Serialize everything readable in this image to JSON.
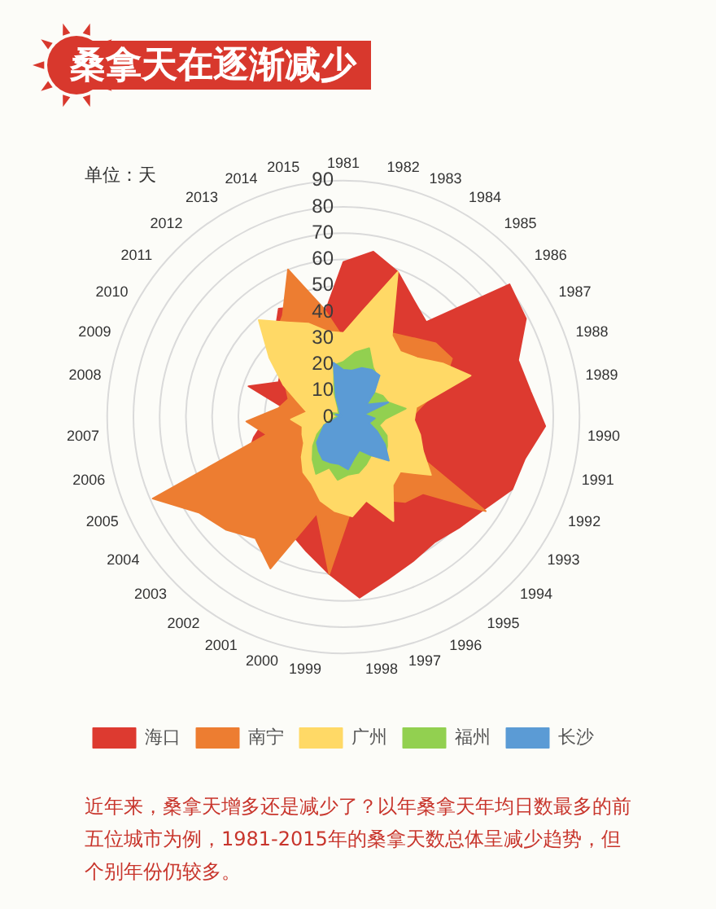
{
  "chart_data": {
    "type": "radar",
    "title": "桑拿天在逐渐减少",
    "ylabel": "单位：天",
    "categories": [
      "1981",
      "1982",
      "1983",
      "1984",
      "1985",
      "1986",
      "1987",
      "1988",
      "1989",
      "1990",
      "1991",
      "1992",
      "1993",
      "1994",
      "1995",
      "1996",
      "1997",
      "1998",
      "1999",
      "2000",
      "2001",
      "2002",
      "2003",
      "2004",
      "2005",
      "2006",
      "2007",
      "2008",
      "2009",
      "2010",
      "2011",
      "2012",
      "2013",
      "2014",
      "2015"
    ],
    "series": [
      {
        "name": "海口",
        "color": "#dd3a30",
        "values": [
          59,
          64,
          59,
          52,
          48,
          81,
          79,
          70,
          72,
          77,
          71,
          70,
          64,
          61,
          59,
          61,
          64,
          69,
          60,
          53,
          48,
          45,
          45,
          42,
          40,
          35,
          30,
          22,
          38,
          28,
          30,
          40,
          48,
          45,
          40
        ]
      },
      {
        "name": "南宁",
        "color": "#ed7d31",
        "values": [
          30,
          30,
          35,
          37,
          40,
          45,
          47,
          40,
          30,
          25,
          25,
          25,
          65,
          42,
          40,
          35,
          30,
          35,
          60,
          38,
          64,
          57,
          62,
          66,
          79,
          30,
          37,
          25,
          22,
          25,
          30,
          40,
          45,
          60,
          42
        ]
      },
      {
        "name": "广州",
        "color": "#ffd966",
        "values": [
          32,
          41,
          59,
          36,
          33,
          36,
          43,
          51,
          28,
          27,
          30,
          33,
          40,
          30,
          32,
          44,
          33,
          38,
          36,
          33,
          28,
          26,
          22,
          18,
          17,
          16,
          20,
          14,
          18,
          26,
          36,
          49,
          42,
          38,
          33
        ]
      },
      {
        "name": "福州",
        "color": "#92d050",
        "values": [
          21,
          25,
          28,
          22,
          20,
          15,
          17,
          18,
          24,
          16,
          14,
          18,
          20,
          22,
          18,
          20,
          22,
          22,
          24,
          20,
          24,
          20,
          16,
          12,
          8,
          5,
          3,
          2,
          5,
          3,
          2,
          3,
          4,
          10,
          20
        ]
      },
      {
        "name": "长沙",
        "color": "#5b9bd5",
        "values": [
          18,
          18,
          20,
          21,
          21,
          15,
          10,
          18,
          8,
          12,
          10,
          14,
          19,
          24,
          18,
          14,
          16,
          20,
          18,
          18,
          18,
          16,
          14,
          10,
          8,
          3,
          2,
          1,
          3,
          2,
          1,
          2,
          3,
          8,
          21
        ]
      }
    ],
    "ylim": [
      0,
      90
    ],
    "yticks": [
      0,
      10,
      20,
      30,
      40,
      50,
      60,
      70,
      80,
      90
    ],
    "grid": true,
    "legend": "bottom",
    "annotations": [
      "近年来，桑拿天增多还是减少了？以年桑拿天年均日数最多的前五位城市为例，1981-2015年的桑拿天数总体呈减少趋势，但个别年份仍较多。"
    ]
  }
}
